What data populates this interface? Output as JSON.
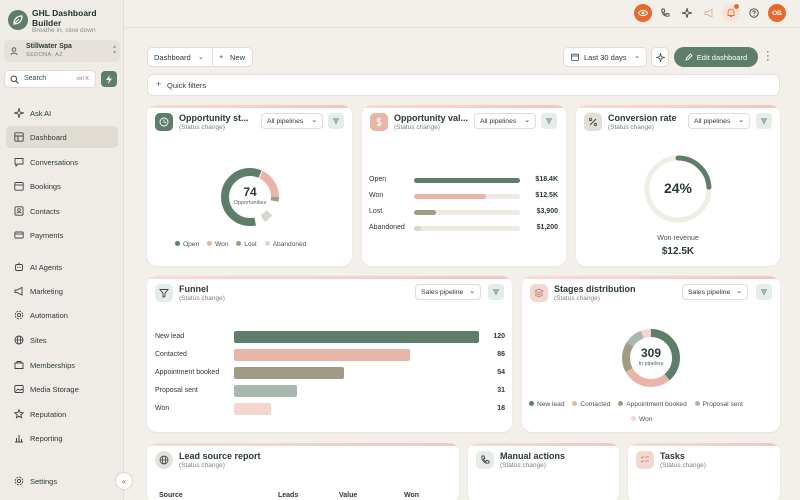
{
  "brand": {
    "title": "GHL Dashboard Builder",
    "subtitle": "Breathe in, slow down"
  },
  "account": {
    "name": "Stillwater Spa",
    "location": "SEDONA, AZ"
  },
  "search": {
    "placeholder": "Search",
    "shortcut": "ctrl K"
  },
  "nav": [
    {
      "label": "Ask AI",
      "icon": "sparkle-icon"
    },
    {
      "label": "Dashboard",
      "icon": "dashboard-icon",
      "active": true
    },
    {
      "label": "Conversations",
      "icon": "chat-icon"
    },
    {
      "label": "Bookings",
      "icon": "calendar-icon"
    },
    {
      "label": "Contacts",
      "icon": "contacts-icon"
    },
    {
      "label": "Payments",
      "icon": "card-icon"
    },
    {
      "label": "AI Agents",
      "icon": "agent-icon"
    },
    {
      "label": "Marketing",
      "icon": "megaphone-icon"
    },
    {
      "label": "Automation",
      "icon": "automation-icon"
    },
    {
      "label": "Sites",
      "icon": "globe-icon"
    },
    {
      "label": "Memberships",
      "icon": "membership-icon"
    },
    {
      "label": "Media Storage",
      "icon": "image-icon"
    },
    {
      "label": "Reputation",
      "icon": "star-icon"
    },
    {
      "label": "Reporting",
      "icon": "report-icon"
    }
  ],
  "settings_label": "Settings",
  "user_initials": "OB",
  "toolbar": {
    "dashboard_label": "Dashboard",
    "new_label": "New",
    "range_label": "Last 30 days",
    "edit_label": "Edit dashboard"
  },
  "quick_filters_label": "Quick filters",
  "colors": {
    "accent": "#5e7d6b",
    "won": "#e8b5a8",
    "lost": "#a19a85",
    "abandoned": "#d9d6cf",
    "orange": "#e9692c"
  },
  "opp_status": {
    "title": "Opportunity st...",
    "subtitle": "(Status change)",
    "select": "All pipelines",
    "total": "74",
    "total_label": "Opportunities",
    "legend": [
      "Open",
      "Won",
      "Lost",
      "Abandoned"
    ]
  },
  "opp_value": {
    "title": "Opportunity val...",
    "subtitle": "(Status change)",
    "select": "All pipelines",
    "rows": [
      {
        "label": "Open",
        "value": "$18.4K",
        "fraction": 1.0
      },
      {
        "label": "Won",
        "value": "$12.5K",
        "fraction": 0.68
      },
      {
        "label": "Lost",
        "value": "$3,900",
        "fraction": 0.21
      },
      {
        "label": "Abandoned",
        "value": "$1,200",
        "fraction": 0.065
      }
    ]
  },
  "conversion": {
    "title": "Conversion rate",
    "subtitle": "(Status change)",
    "select": "All pipelines",
    "value": "24%",
    "ratio": 0.24,
    "caption": "Won revenue",
    "amount": "$12.5K"
  },
  "funnel": {
    "title": "Funnel",
    "subtitle": "(Status change)",
    "select": "Sales pipeline",
    "rows": [
      {
        "label": "New lead",
        "value": "120",
        "n": 120,
        "color": "#5e7d6b"
      },
      {
        "label": "Contacted",
        "value": "86",
        "n": 86,
        "color": "#e8b5a8"
      },
      {
        "label": "Appointment booked",
        "value": "54",
        "n": 54,
        "color": "#a19a85"
      },
      {
        "label": "Proposal sent",
        "value": "31",
        "n": 31,
        "color": "#a7b8ae"
      },
      {
        "label": "Won",
        "value": "18",
        "n": 18,
        "color": "#f5d6cf"
      }
    ]
  },
  "stages": {
    "title": "Stages distribution",
    "subtitle": "(Status change)",
    "select": "Sales pipeline",
    "total": "309",
    "total_label": "In pipeline",
    "legend": [
      "New lead",
      "Contacted",
      "Appointment booked",
      "Proposal sent",
      "Won"
    ]
  },
  "lead_source": {
    "title": "Lead source report",
    "subtitle": "(Status change)",
    "headers": [
      "Source",
      "Leads",
      "Value",
      "Won"
    ]
  },
  "manual_actions": {
    "title": "Manual actions",
    "subtitle": "(Status change)"
  },
  "tasks": {
    "title": "Tasks",
    "subtitle": "(Status change)"
  }
}
